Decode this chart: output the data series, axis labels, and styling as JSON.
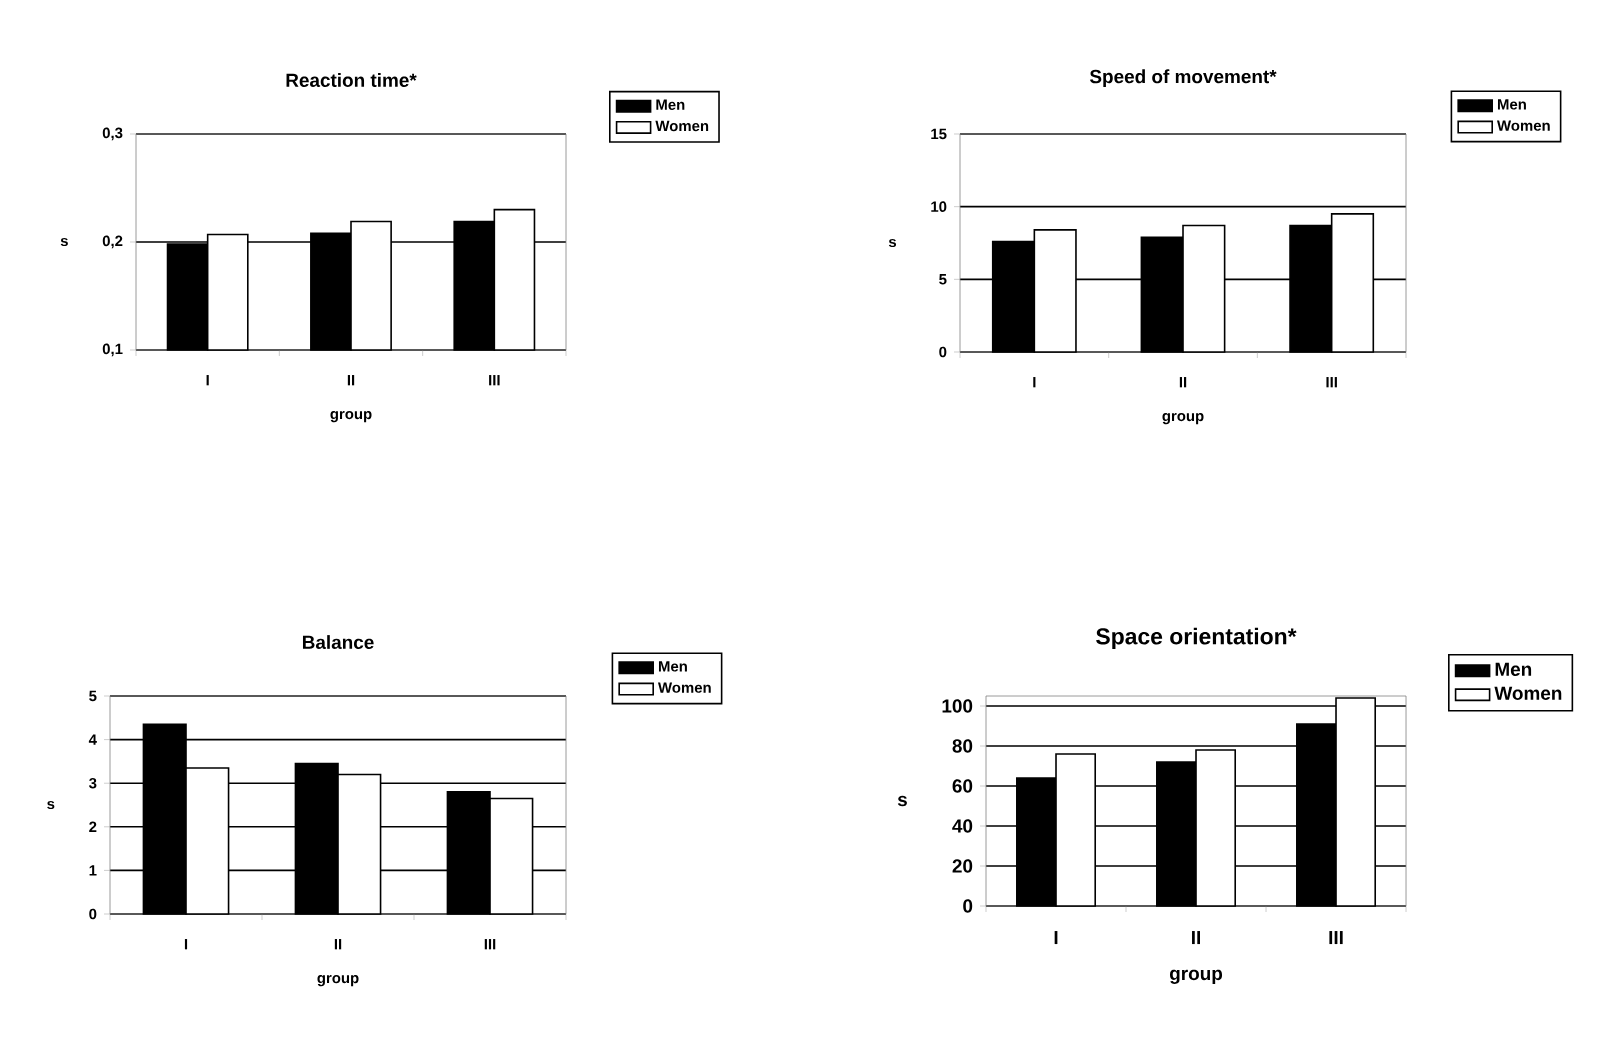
{
  "chart_data": [
    {
      "type": "bar",
      "title": "Reaction time*",
      "xlabel": "group",
      "ylabel": "s",
      "categories": [
        "I",
        "II",
        "III"
      ],
      "series": [
        {
          "name": "Men",
          "color": "#000000",
          "values": [
            0.198,
            0.208,
            0.219
          ]
        },
        {
          "name": "Women",
          "color": "#ffffff",
          "values": [
            0.207,
            0.219,
            0.23
          ]
        }
      ],
      "ylim": [
        0.1,
        0.3
      ],
      "yticks": [
        {
          "value": 0.1,
          "label": "0,1"
        },
        {
          "value": 0.2,
          "label": "0,2"
        },
        {
          "value": 0.3,
          "label": "0,3"
        }
      ],
      "grid": "y",
      "legend": "right"
    },
    {
      "type": "bar",
      "title": "Speed of movement*",
      "xlabel": "group",
      "ylabel": "s",
      "categories": [
        "I",
        "II",
        "III"
      ],
      "series": [
        {
          "name": "Men",
          "color": "#000000",
          "values": [
            7.6,
            7.9,
            8.7
          ]
        },
        {
          "name": "Women",
          "color": "#ffffff",
          "values": [
            8.4,
            8.7,
            9.5
          ]
        }
      ],
      "ylim": [
        0,
        15
      ],
      "yticks": [
        0,
        5,
        10,
        15
      ],
      "grid": "y",
      "legend": "right"
    },
    {
      "type": "bar",
      "title": "Balance",
      "xlabel": "group",
      "ylabel": "s",
      "categories": [
        "I",
        "II",
        "III"
      ],
      "series": [
        {
          "name": "Men",
          "color": "#000000",
          "values": [
            4.35,
            3.45,
            2.8
          ]
        },
        {
          "name": "Women",
          "color": "#ffffff",
          "values": [
            3.35,
            3.2,
            2.65
          ]
        }
      ],
      "ylim": [
        0,
        5
      ],
      "yticks": [
        0,
        1,
        2,
        3,
        4,
        5
      ],
      "grid": "y",
      "legend": "right"
    },
    {
      "type": "bar",
      "title": "Space orientation*",
      "xlabel": "group",
      "ylabel": "s",
      "categories": [
        "I",
        "II",
        "III"
      ],
      "series": [
        {
          "name": "Men",
          "color": "#000000",
          "values": [
            64,
            72,
            91
          ]
        },
        {
          "name": "Women",
          "color": "#ffffff",
          "values": [
            76,
            78,
            104
          ]
        }
      ],
      "ylim": [
        0,
        105
      ],
      "yticks": [
        0,
        20,
        40,
        60,
        80,
        100
      ],
      "grid": "y",
      "legend": "right"
    }
  ]
}
